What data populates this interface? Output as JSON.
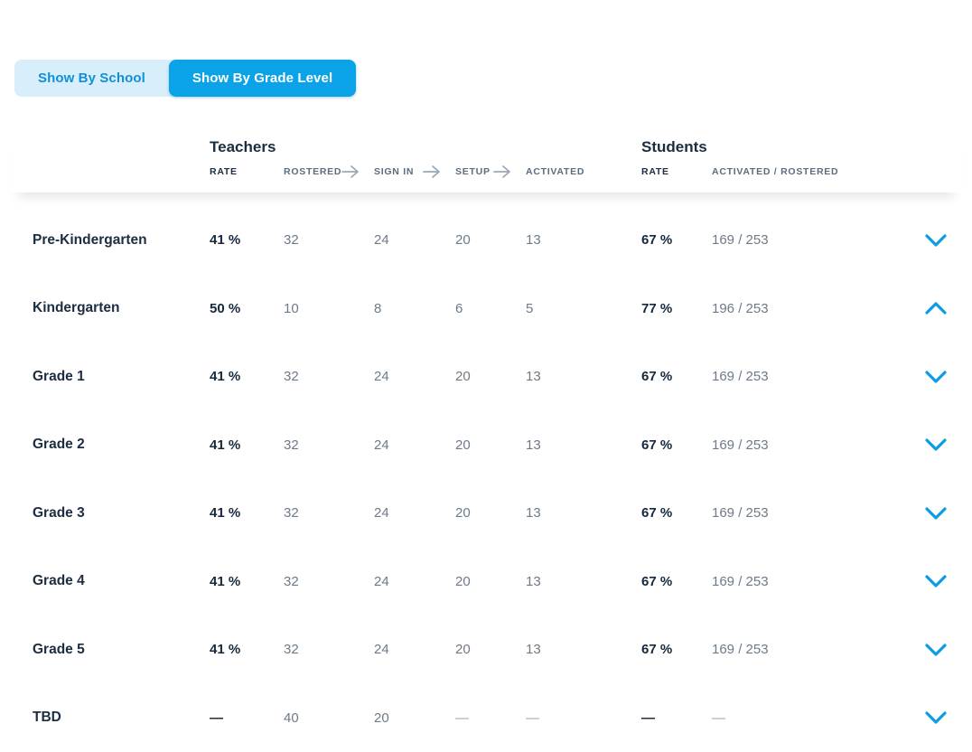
{
  "toggle": {
    "options": [
      {
        "label": "Show By School",
        "active": false
      },
      {
        "label": "Show By Grade Level",
        "active": true
      }
    ]
  },
  "table": {
    "groups": {
      "teachers_title": "Teachers",
      "students_title": "Students"
    },
    "columns": {
      "teacher_rate": "RATE",
      "rostered": "ROSTERED",
      "sign_in": "SIGN IN",
      "setup": "SETUP",
      "activated": "ACTIVATED",
      "student_rate": "RATE",
      "student_activated_rostered": "ACTIVATED / ROSTERED"
    },
    "rows": [
      {
        "label": "Pre-Kindergarten",
        "teacher_rate": "41 %",
        "rostered": "32",
        "sign_in": "24",
        "setup": "20",
        "activated": "13",
        "student_rate": "67 %",
        "student_activated_rostered": "169 / 253",
        "expanded": false
      },
      {
        "label": "Kindergarten",
        "teacher_rate": "50 %",
        "rostered": "10",
        "sign_in": "8",
        "setup": "6",
        "activated": "5",
        "student_rate": "77 %",
        "student_activated_rostered": "196 / 253",
        "expanded": true
      },
      {
        "label": "Grade 1",
        "teacher_rate": "41 %",
        "rostered": "32",
        "sign_in": "24",
        "setup": "20",
        "activated": "13",
        "student_rate": "67 %",
        "student_activated_rostered": "169 / 253",
        "expanded": false
      },
      {
        "label": "Grade 2",
        "teacher_rate": "41 %",
        "rostered": "32",
        "sign_in": "24",
        "setup": "20",
        "activated": "13",
        "student_rate": "67 %",
        "student_activated_rostered": "169 / 253",
        "expanded": false
      },
      {
        "label": "Grade 3",
        "teacher_rate": "41 %",
        "rostered": "32",
        "sign_in": "24",
        "setup": "20",
        "activated": "13",
        "student_rate": "67 %",
        "student_activated_rostered": "169 / 253",
        "expanded": false
      },
      {
        "label": "Grade 4",
        "teacher_rate": "41 %",
        "rostered": "32",
        "sign_in": "24",
        "setup": "20",
        "activated": "13",
        "student_rate": "67 %",
        "student_activated_rostered": "169 / 253",
        "expanded": false
      },
      {
        "label": "Grade 5",
        "teacher_rate": "41 %",
        "rostered": "32",
        "sign_in": "24",
        "setup": "20",
        "activated": "13",
        "student_rate": "67 %",
        "student_activated_rostered": "169 / 253",
        "expanded": false
      },
      {
        "label": "TBD",
        "teacher_rate": "—",
        "rostered": "40",
        "sign_in": "20",
        "setup": "—",
        "activated": "—",
        "student_rate": "—",
        "student_activated_rostered": "—",
        "expanded": false
      }
    ]
  },
  "colors": {
    "accent_blue": "#0ba3e8",
    "toggle_inactive_bg": "#d9eefb",
    "toggle_inactive_text": "#0f90d9",
    "chevron_blue": "#0d9ce4",
    "dark_navy": "#1c2c41",
    "value_gray": "#6d7a89",
    "column_label_gray": "#5c6d7f",
    "arrow_gray": "#9aa7b4"
  }
}
